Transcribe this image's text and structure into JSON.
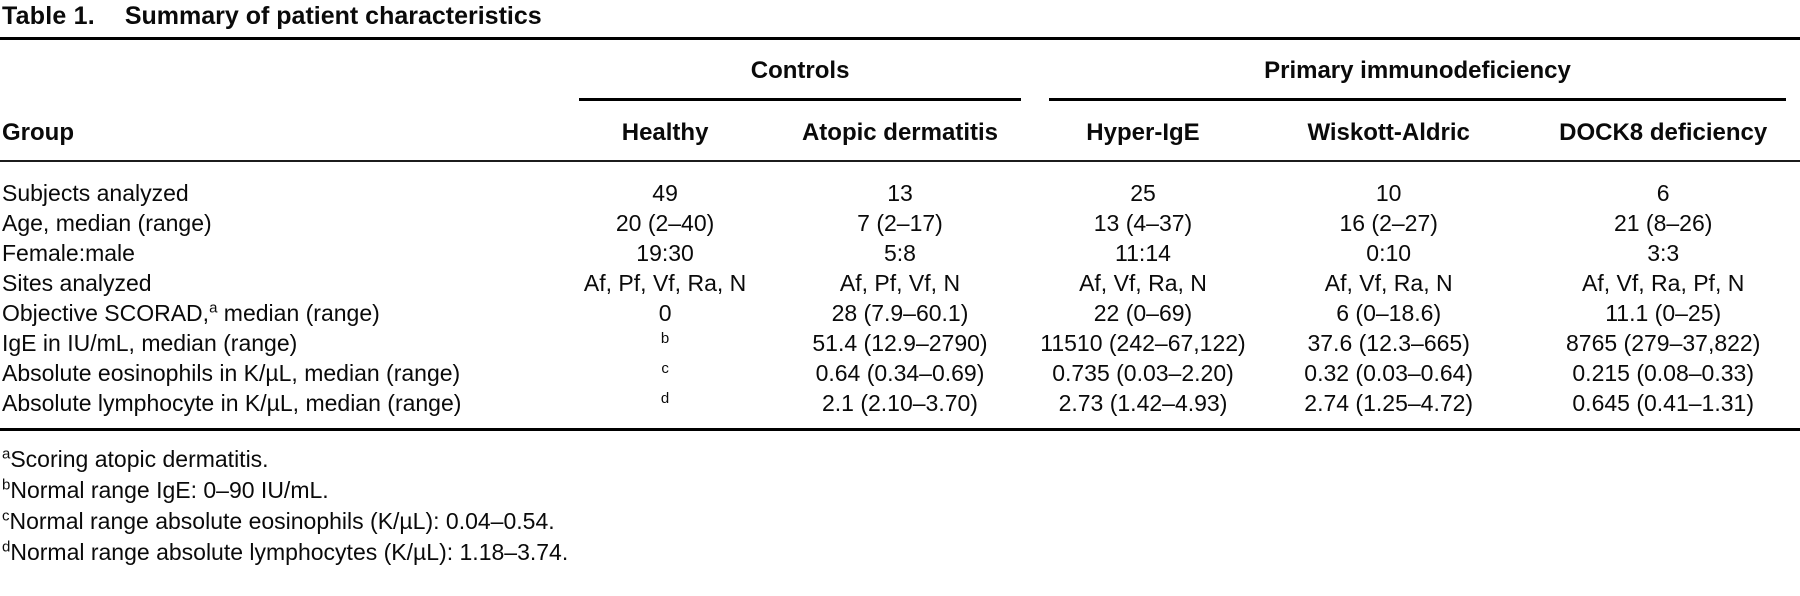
{
  "title": {
    "label": "Table 1.",
    "text": "Summary of patient characteristics"
  },
  "table": {
    "group_header_col": "Group",
    "col_groups": [
      {
        "label": "Controls"
      },
      {
        "label": "Primary immunodeficiency"
      }
    ],
    "columns": [
      "Healthy",
      "Atopic dermatitis",
      "Hyper-IgE",
      "Wiskott-Aldric",
      "DOCK8 deficiency"
    ],
    "rows": [
      {
        "label": {
          "pre": "Subjects analyzed",
          "sup": "",
          "post": ""
        },
        "cells": [
          {
            "t": "49",
            "s": ""
          },
          {
            "t": "13",
            "s": ""
          },
          {
            "t": "25",
            "s": ""
          },
          {
            "t": "10",
            "s": ""
          },
          {
            "t": "6",
            "s": ""
          }
        ]
      },
      {
        "label": {
          "pre": "Age, median (range)",
          "sup": "",
          "post": ""
        },
        "cells": [
          {
            "t": "20 (2–40)",
            "s": ""
          },
          {
            "t": "7 (2–17)",
            "s": ""
          },
          {
            "t": "13 (4–37)",
            "s": ""
          },
          {
            "t": "16 (2–27)",
            "s": ""
          },
          {
            "t": "21 (8–26)",
            "s": ""
          }
        ]
      },
      {
        "label": {
          "pre": "Female:male",
          "sup": "",
          "post": ""
        },
        "cells": [
          {
            "t": "19:30",
            "s": ""
          },
          {
            "t": "5:8",
            "s": ""
          },
          {
            "t": "11:14",
            "s": ""
          },
          {
            "t": "0:10",
            "s": ""
          },
          {
            "t": "3:3",
            "s": ""
          }
        ]
      },
      {
        "label": {
          "pre": "Sites analyzed",
          "sup": "",
          "post": ""
        },
        "cells": [
          {
            "t": "Af, Pf, Vf, Ra, N",
            "s": ""
          },
          {
            "t": "Af, Pf, Vf, N",
            "s": ""
          },
          {
            "t": "Af, Vf, Ra, N",
            "s": ""
          },
          {
            "t": "Af, Vf, Ra, N",
            "s": ""
          },
          {
            "t": "Af, Vf, Ra, Pf, N",
            "s": ""
          }
        ]
      },
      {
        "label": {
          "pre": "Objective SCORAD,",
          "sup": "a",
          "post": " median (range)"
        },
        "cells": [
          {
            "t": "0",
            "s": ""
          },
          {
            "t": "28 (7.9–60.1)",
            "s": ""
          },
          {
            "t": "22 (0–69)",
            "s": ""
          },
          {
            "t": "6 (0–18.6)",
            "s": ""
          },
          {
            "t": "11.1 (0–25)",
            "s": ""
          }
        ]
      },
      {
        "label": {
          "pre": "IgE in IU/mL, median (range)",
          "sup": "",
          "post": ""
        },
        "cells": [
          {
            "t": "",
            "s": "b"
          },
          {
            "t": "51.4 (12.9–2790)",
            "s": ""
          },
          {
            "t": "11510 (242–67,122)",
            "s": ""
          },
          {
            "t": "37.6 (12.3–665)",
            "s": ""
          },
          {
            "t": "8765 (279–37,822)",
            "s": ""
          }
        ]
      },
      {
        "label": {
          "pre": "Absolute eosinophils in K/µL, median (range)",
          "sup": "",
          "post": ""
        },
        "cells": [
          {
            "t": "",
            "s": "c"
          },
          {
            "t": "0.64 (0.34–0.69)",
            "s": ""
          },
          {
            "t": "0.735 (0.03–2.20)",
            "s": ""
          },
          {
            "t": "0.32 (0.03–0.64)",
            "s": ""
          },
          {
            "t": "0.215 (0.08–0.33)",
            "s": ""
          }
        ]
      },
      {
        "label": {
          "pre": "Absolute lymphocyte in K/µL, median (range)",
          "sup": "",
          "post": ""
        },
        "cells": [
          {
            "t": "",
            "s": "d"
          },
          {
            "t": "2.1 (2.10–3.70)",
            "s": ""
          },
          {
            "t": "2.73 (1.42–4.93)",
            "s": ""
          },
          {
            "t": "2.74 (1.25–4.72)",
            "s": ""
          },
          {
            "t": "0.645 (0.41–1.31)",
            "s": ""
          }
        ]
      }
    ]
  },
  "footnotes": [
    {
      "sup": "a",
      "text": "Scoring atopic dermatitis."
    },
    {
      "sup": "b",
      "text": "Normal range IgE: 0–90 IU/mL."
    },
    {
      "sup": "c",
      "text": "Normal range absolute eosinophils (K/µL): 0.04–0.54."
    },
    {
      "sup": "d",
      "text": "Normal range absolute lymphocytes (K/µL): 1.18–3.74."
    }
  ]
}
